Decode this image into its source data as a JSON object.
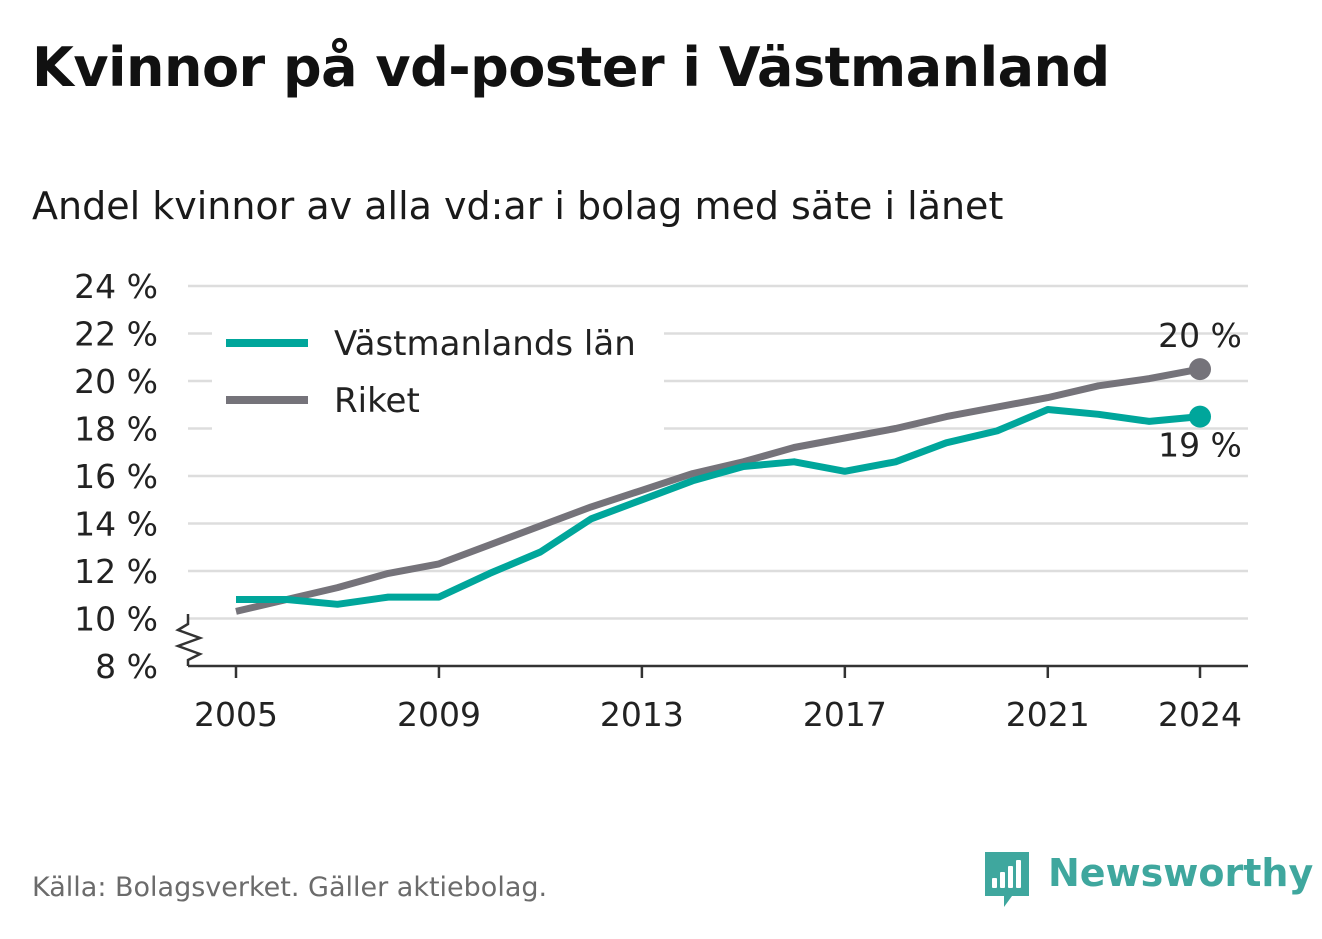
{
  "title": "Kvinnor på vd-poster i Västmanland",
  "subtitle": "Andel kvinnor av alla vd:ar i bolag med säte i länet",
  "source": "Källa: Bolagsverket. Gäller aktiebolag.",
  "brand": {
    "name": "Newsworthy",
    "icon": "bar-chart-speech-bubble-icon",
    "color": "#3fa79e"
  },
  "chart_data": {
    "type": "line",
    "x": [
      2005,
      2006,
      2007,
      2008,
      2009,
      2010,
      2011,
      2012,
      2013,
      2014,
      2015,
      2016,
      2017,
      2018,
      2019,
      2020,
      2021,
      2022,
      2023,
      2024
    ],
    "x_ticks": [
      "2005",
      "2009",
      "2013",
      "2017",
      "2021",
      "2024"
    ],
    "y_ticks": [
      "8 %",
      "10 %",
      "12 %",
      "14 %",
      "16 %",
      "18 %",
      "20 %",
      "22 %",
      "24 %"
    ],
    "ylim": [
      8,
      24
    ],
    "y_unit": "%",
    "axis_break": true,
    "grid": "horizontal",
    "legend_position": "top-left",
    "series": [
      {
        "name": "Västmanlands län",
        "color": "#00a69b",
        "values": [
          10.8,
          10.8,
          10.6,
          10.9,
          10.9,
          11.9,
          12.8,
          14.2,
          15.0,
          15.8,
          16.4,
          16.6,
          16.2,
          16.6,
          17.4,
          17.9,
          18.8,
          18.6,
          18.3,
          18.5
        ],
        "end_label": "19 %"
      },
      {
        "name": "Riket",
        "color": "#75737a",
        "values": [
          10.3,
          10.8,
          11.3,
          11.9,
          12.3,
          13.1,
          13.9,
          14.7,
          15.4,
          16.1,
          16.6,
          17.2,
          17.6,
          18.0,
          18.5,
          18.9,
          19.3,
          19.8,
          20.1,
          20.5
        ],
        "end_label": "20 %"
      }
    ]
  }
}
